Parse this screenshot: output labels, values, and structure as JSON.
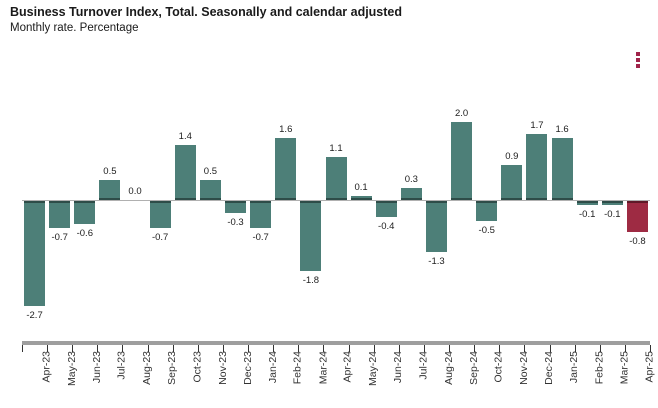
{
  "header": {
    "title": "Business Turnover Index, Total. Seasonally and calendar adjusted",
    "subtitle": "Monthly rate. Percentage"
  },
  "toolbar": {
    "context_menu_icon": "vertical-ellipsis-icon",
    "icon_color": "#a0234a"
  },
  "chart_data": {
    "type": "bar",
    "title": "Business Turnover Index, Total. Seasonally and calendar adjusted",
    "subtitle": "Monthly rate. Percentage",
    "categories": [
      "Apr-23",
      "May-23",
      "Jun-23",
      "Jul-23",
      "Aug-23",
      "Sep-23",
      "Oct-23",
      "Nov-23",
      "Dec-23",
      "Jan-24",
      "Feb-24",
      "Mar-24",
      "Apr-24",
      "May-24",
      "Jun-24",
      "Jul-24",
      "Aug-24",
      "Sep-24",
      "Oct-24",
      "Nov-24",
      "Dec-24",
      "Jan-25",
      "Feb-25",
      "Mar-25",
      "Apr-25"
    ],
    "values": [
      -2.7,
      -0.7,
      -0.6,
      0.5,
      0.0,
      -0.7,
      1.4,
      0.5,
      -0.3,
      -0.7,
      1.6,
      -1.8,
      1.1,
      0.1,
      -0.4,
      0.3,
      -1.3,
      2.0,
      -0.5,
      0.9,
      1.7,
      1.6,
      -0.1,
      -0.1,
      -0.8
    ],
    "bar_color": "#4d7f78",
    "highlight_color": "#9e2b43",
    "highlight_index": 24,
    "value_labels": true,
    "xlabel": "",
    "ylabel": "",
    "ylim": [
      -3.0,
      2.6
    ],
    "grid": false,
    "legend": false
  }
}
